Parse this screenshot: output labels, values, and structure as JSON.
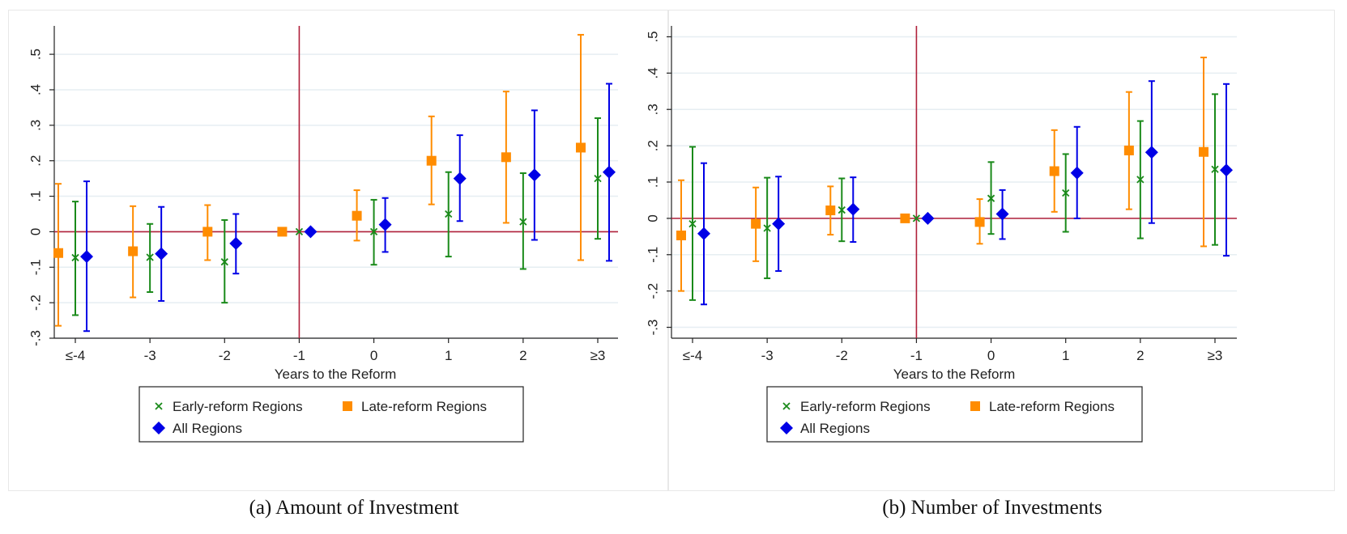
{
  "figure": {
    "captions": [
      "(a) Amount of Investment",
      "(b) Number of Investments"
    ]
  },
  "colors": {
    "early": "#1a8a1a",
    "late": "#ff8c00",
    "all": "#0000e6",
    "reference_line": "#b0203a",
    "grid": "#e6eef2"
  },
  "chart_data": [
    {
      "type": "scatter",
      "subtype": "event-study coefficient plot with 95% confidence intervals",
      "title": "",
      "caption": "(a) Amount of Investment",
      "xlabel": "Years to the Reform",
      "ylabel": "",
      "categories": [
        "≤-4",
        "-3",
        "-2",
        "-1",
        "0",
        "1",
        "2",
        "≥3"
      ],
      "ylim": [
        -0.3,
        0.58
      ],
      "yticks": [
        -0.3,
        -0.2,
        -0.1,
        0,
        0.1,
        0.2,
        0.3,
        0.4,
        0.5
      ],
      "ytick_labels": [
        "-.3",
        "-.2",
        "-.1",
        "0",
        ".1",
        ".2",
        ".3",
        ".4",
        ".5"
      ],
      "reference_lines": {
        "horizontal": 0,
        "vertical_category": "-1"
      },
      "grid": true,
      "legend": {
        "position": "bottom"
      },
      "series": [
        {
          "name": "Late-reform Regions",
          "marker": "square",
          "values": [
            -0.06,
            -0.055,
            0.0,
            0.0,
            0.045,
            0.2,
            0.21,
            0.237
          ],
          "ci_low": [
            -0.265,
            -0.185,
            -0.08,
            0.0,
            -0.025,
            0.077,
            0.025,
            -0.08
          ],
          "ci_high": [
            0.135,
            0.072,
            0.075,
            0.0,
            0.117,
            0.325,
            0.395,
            0.555
          ]
        },
        {
          "name": "Early-reform Regions",
          "marker": "x",
          "values": [
            -0.073,
            -0.072,
            -0.085,
            0.0,
            0.0,
            0.05,
            0.028,
            0.15
          ],
          "ci_low": [
            -0.235,
            -0.17,
            -0.2,
            0.0,
            -0.093,
            -0.07,
            -0.105,
            -0.02
          ],
          "ci_high": [
            0.085,
            0.022,
            0.033,
            0.0,
            0.09,
            0.168,
            0.165,
            0.32
          ]
        },
        {
          "name": "All Regions",
          "marker": "diamond",
          "values": [
            -0.07,
            -0.062,
            -0.033,
            0.0,
            0.02,
            0.15,
            0.16,
            0.168
          ],
          "ci_low": [
            -0.28,
            -0.195,
            -0.118,
            0.0,
            -0.057,
            0.03,
            -0.023,
            -0.082
          ],
          "ci_high": [
            0.142,
            0.07,
            0.05,
            0.0,
            0.095,
            0.272,
            0.342,
            0.417
          ]
        }
      ]
    },
    {
      "type": "scatter",
      "subtype": "event-study coefficient plot with 95% confidence intervals",
      "title": "",
      "caption": "(b) Number of Investments",
      "xlabel": "Years to the Reform",
      "ylabel": "",
      "categories": [
        "≤-4",
        "-3",
        "-2",
        "-1",
        "0",
        "1",
        "2",
        "≥3"
      ],
      "ylim": [
        -0.33,
        0.53
      ],
      "yticks": [
        -0.3,
        -0.2,
        -0.1,
        0,
        0.1,
        0.2,
        0.3,
        0.4,
        0.5
      ],
      "ytick_labels": [
        "-.3",
        "-.2",
        "-.1",
        "0",
        ".1",
        ".2",
        ".3",
        ".4",
        ".5"
      ],
      "reference_lines": {
        "horizontal": 0,
        "vertical_category": "-1"
      },
      "grid": true,
      "legend": {
        "position": "bottom"
      },
      "series": [
        {
          "name": "Late-reform Regions",
          "marker": "square",
          "values": [
            -0.047,
            -0.015,
            0.022,
            0.0,
            -0.01,
            0.13,
            0.187,
            0.183
          ],
          "ci_low": [
            -0.2,
            -0.118,
            -0.045,
            0.0,
            -0.07,
            0.018,
            0.025,
            -0.077
          ],
          "ci_high": [
            0.105,
            0.085,
            0.088,
            0.0,
            0.053,
            0.243,
            0.348,
            0.443
          ]
        },
        {
          "name": "Early-reform Regions",
          "marker": "x",
          "values": [
            -0.015,
            -0.027,
            0.023,
            0.0,
            0.055,
            0.07,
            0.107,
            0.135
          ],
          "ci_low": [
            -0.225,
            -0.165,
            -0.063,
            0.0,
            -0.043,
            -0.037,
            -0.055,
            -0.073
          ],
          "ci_high": [
            0.197,
            0.112,
            0.11,
            0.0,
            0.155,
            0.177,
            0.268,
            0.342
          ]
        },
        {
          "name": "All Regions",
          "marker": "diamond",
          "values": [
            -0.042,
            -0.015,
            0.025,
            0.0,
            0.012,
            0.125,
            0.182,
            0.133
          ],
          "ci_low": [
            -0.237,
            -0.145,
            -0.065,
            0.0,
            -0.057,
            0.0,
            -0.013,
            -0.103
          ],
          "ci_high": [
            0.152,
            0.115,
            0.113,
            0.0,
            0.078,
            0.252,
            0.378,
            0.37
          ]
        }
      ]
    }
  ]
}
